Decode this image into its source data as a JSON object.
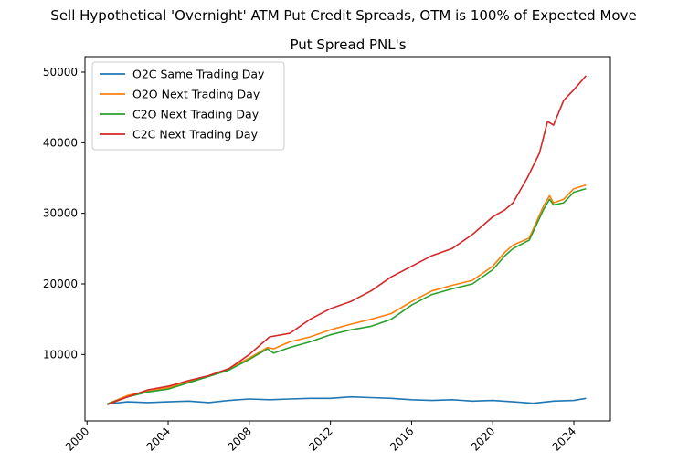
{
  "chart_data": {
    "type": "line",
    "suptitle": "Sell Hypothetical 'Overnight' ATM Put Credit Spreads, OTM is 100% of Expected Move",
    "title": "Put Spread PNL's",
    "xlabel": "",
    "ylabel": "",
    "xlim": [
      1999.9,
      2025.8
    ],
    "ylim": [
      600,
      52200
    ],
    "x_ticks": [
      {
        "value": 2000,
        "label": "2000"
      },
      {
        "value": 2004,
        "label": "2004"
      },
      {
        "value": 2008,
        "label": "2008"
      },
      {
        "value": 2012,
        "label": "2012"
      },
      {
        "value": 2016,
        "label": "2016"
      },
      {
        "value": 2020,
        "label": "2020"
      },
      {
        "value": 2024,
        "label": "2024"
      }
    ],
    "y_ticks": [
      {
        "value": 10000,
        "label": "10000"
      },
      {
        "value": 20000,
        "label": "20000"
      },
      {
        "value": 30000,
        "label": "30000"
      },
      {
        "value": 40000,
        "label": "40000"
      },
      {
        "value": 50000,
        "label": "50000"
      }
    ],
    "legend_position": "top-left",
    "series": [
      {
        "name": "O2C Same Trading Day",
        "color": "#1f77b4",
        "points": [
          [
            2001.0,
            3000
          ],
          [
            2002.0,
            3300
          ],
          [
            2003.0,
            3200
          ],
          [
            2004.0,
            3300
          ],
          [
            2005.0,
            3400
          ],
          [
            2006.0,
            3200
          ],
          [
            2007.0,
            3500
          ],
          [
            2008.0,
            3700
          ],
          [
            2009.0,
            3600
          ],
          [
            2010.0,
            3700
          ],
          [
            2011.0,
            3800
          ],
          [
            2012.0,
            3800
          ],
          [
            2013.0,
            4000
          ],
          [
            2014.0,
            3900
          ],
          [
            2015.0,
            3800
          ],
          [
            2016.0,
            3600
          ],
          [
            2017.0,
            3500
          ],
          [
            2018.0,
            3600
          ],
          [
            2019.0,
            3400
          ],
          [
            2020.0,
            3500
          ],
          [
            2021.0,
            3300
          ],
          [
            2022.0,
            3100
          ],
          [
            2023.0,
            3400
          ],
          [
            2024.0,
            3500
          ],
          [
            2024.6,
            3800
          ]
        ]
      },
      {
        "name": "O2O Next Trading Day",
        "color": "#ff7f0e",
        "points": [
          [
            2001.0,
            3000
          ],
          [
            2002.0,
            4200
          ],
          [
            2003.0,
            4800
          ],
          [
            2004.0,
            5300
          ],
          [
            2005.0,
            6200
          ],
          [
            2006.0,
            7000
          ],
          [
            2007.0,
            8000
          ],
          [
            2008.0,
            9500
          ],
          [
            2008.9,
            11000
          ],
          [
            2009.2,
            10800
          ],
          [
            2010.0,
            11800
          ],
          [
            2011.0,
            12500
          ],
          [
            2012.0,
            13500
          ],
          [
            2013.0,
            14300
          ],
          [
            2014.0,
            15000
          ],
          [
            2015.0,
            15800
          ],
          [
            2016.0,
            17500
          ],
          [
            2017.0,
            19000
          ],
          [
            2018.0,
            19800
          ],
          [
            2019.0,
            20500
          ],
          [
            2020.0,
            22500
          ],
          [
            2020.6,
            24500
          ],
          [
            2021.0,
            25500
          ],
          [
            2021.8,
            26500
          ],
          [
            2022.5,
            31000
          ],
          [
            2022.8,
            32500
          ],
          [
            2023.0,
            31500
          ],
          [
            2023.5,
            32000
          ],
          [
            2024.0,
            33500
          ],
          [
            2024.6,
            34000
          ]
        ]
      },
      {
        "name": "C2O Next Trading Day",
        "color": "#2ca02c",
        "points": [
          [
            2001.0,
            3000
          ],
          [
            2002.0,
            4000
          ],
          [
            2003.0,
            4700
          ],
          [
            2004.0,
            5100
          ],
          [
            2005.0,
            6000
          ],
          [
            2006.0,
            6900
          ],
          [
            2007.0,
            7800
          ],
          [
            2008.0,
            9300
          ],
          [
            2008.9,
            10800
          ],
          [
            2009.2,
            10200
          ],
          [
            2010.0,
            11000
          ],
          [
            2011.0,
            11800
          ],
          [
            2012.0,
            12800
          ],
          [
            2013.0,
            13500
          ],
          [
            2014.0,
            14000
          ],
          [
            2015.0,
            15000
          ],
          [
            2016.0,
            17000
          ],
          [
            2017.0,
            18500
          ],
          [
            2018.0,
            19300
          ],
          [
            2019.0,
            20000
          ],
          [
            2020.0,
            22000
          ],
          [
            2020.6,
            24000
          ],
          [
            2021.0,
            25000
          ],
          [
            2021.8,
            26200
          ],
          [
            2022.5,
            30500
          ],
          [
            2022.8,
            32000
          ],
          [
            2023.0,
            31200
          ],
          [
            2023.5,
            31500
          ],
          [
            2024.0,
            33000
          ],
          [
            2024.6,
            33500
          ]
        ]
      },
      {
        "name": "C2C Next Trading Day",
        "color": "#d62728",
        "points": [
          [
            2001.0,
            2900
          ],
          [
            2002.0,
            4000
          ],
          [
            2003.0,
            5000
          ],
          [
            2004.0,
            5500
          ],
          [
            2005.0,
            6300
          ],
          [
            2006.0,
            7000
          ],
          [
            2007.0,
            8000
          ],
          [
            2008.0,
            10000
          ],
          [
            2009.0,
            12500
          ],
          [
            2010.0,
            13000
          ],
          [
            2011.0,
            15000
          ],
          [
            2012.0,
            16500
          ],
          [
            2013.0,
            17500
          ],
          [
            2014.0,
            19000
          ],
          [
            2015.0,
            21000
          ],
          [
            2016.0,
            22500
          ],
          [
            2017.0,
            24000
          ],
          [
            2018.0,
            25000
          ],
          [
            2019.0,
            27000
          ],
          [
            2020.0,
            29500
          ],
          [
            2020.6,
            30500
          ],
          [
            2021.0,
            31500
          ],
          [
            2021.7,
            35000
          ],
          [
            2022.3,
            38500
          ],
          [
            2022.7,
            43000
          ],
          [
            2023.0,
            42500
          ],
          [
            2023.5,
            46000
          ],
          [
            2024.0,
            47500
          ],
          [
            2024.6,
            49500
          ]
        ]
      }
    ]
  }
}
